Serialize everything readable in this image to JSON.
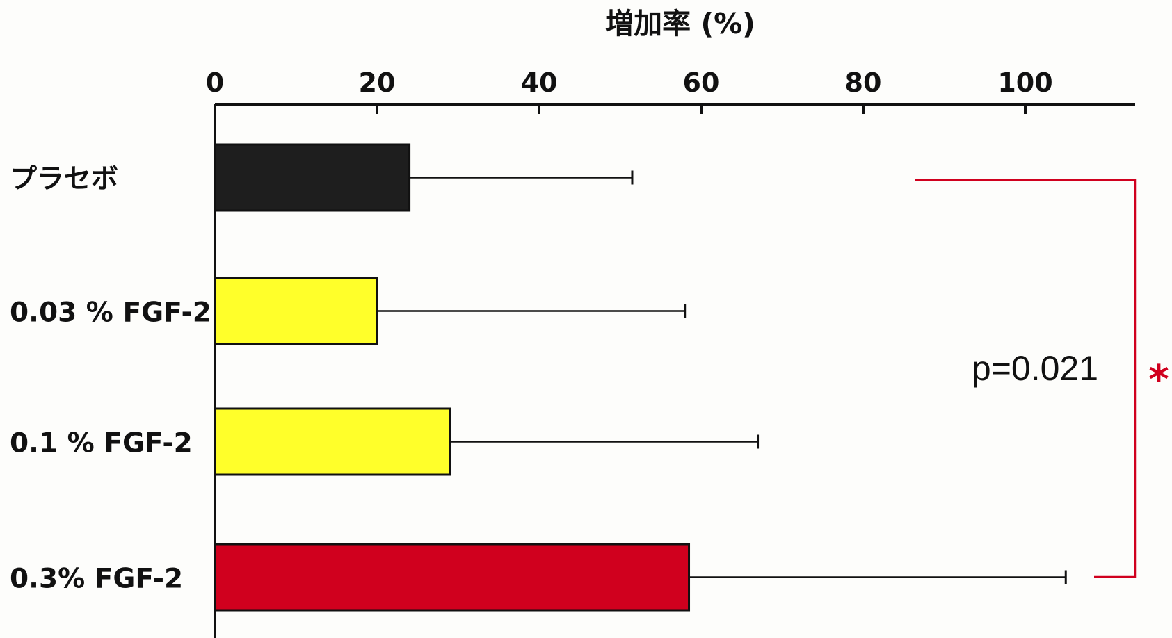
{
  "chart_data": {
    "type": "bar",
    "orientation": "horizontal",
    "title": "増加率 (%)",
    "xlabel": "増加率 (%)",
    "ylabel": "",
    "xlim": [
      0,
      113
    ],
    "x_ticks": [
      "0",
      "20",
      "40",
      "60",
      "80",
      "100"
    ],
    "x_tick_values": [
      0,
      20,
      40,
      60,
      80,
      100
    ],
    "x_axis_position": "top",
    "grid": false,
    "categories": [
      "プラセボ",
      "0.03 % FGF-2",
      "0.1 % FGF-2",
      "0.3% FGF-2"
    ],
    "values": [
      24,
      20,
      29,
      58.5
    ],
    "error_upper": [
      51.5,
      58,
      67,
      105
    ],
    "bar_colors": [
      "#1e1e1e",
      "#ffff2a",
      "#ffff2a",
      "#d0001e"
    ],
    "annotations": {
      "p_value": "p=0.021",
      "significance_mark": "*",
      "bracket_between": [
        "プラセボ",
        "0.3% FGF-2"
      ],
      "bracket_color": "#d0001e"
    }
  }
}
